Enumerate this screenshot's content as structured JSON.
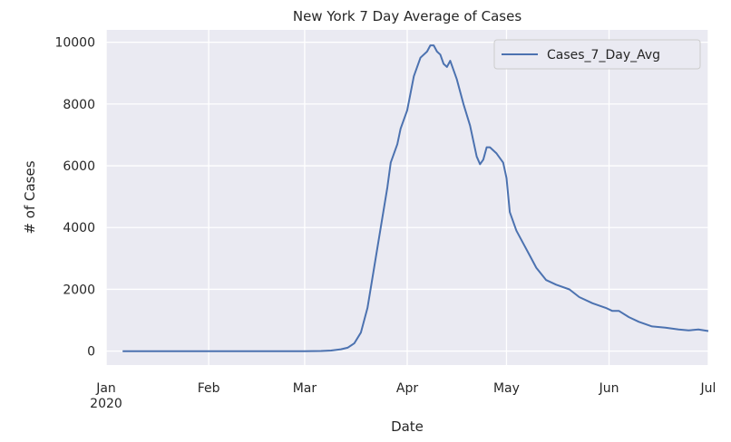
{
  "chart_data": {
    "type": "line",
    "title": "New York 7 Day Average of Cases",
    "xlabel": "Date",
    "ylabel": "# of Cases",
    "x_tick_labels": [
      "Jan\n2020",
      "Feb",
      "Mar",
      "Apr",
      "May",
      "Jun",
      "Jul"
    ],
    "x_tick_dates": [
      "2020-01-01",
      "2020-02-01",
      "2020-03-01",
      "2020-04-01",
      "2020-05-01",
      "2020-06-01",
      "2020-07-01"
    ],
    "xlim": [
      "2020-01-01",
      "2020-07-01"
    ],
    "y_ticks": [
      0,
      2000,
      4000,
      6000,
      8000,
      10000
    ],
    "y_tick_labels": [
      "0",
      "2000",
      "4000",
      "6000",
      "8000",
      "10000"
    ],
    "ylim": [
      -450,
      10400
    ],
    "grid": true,
    "legend": {
      "position": "top-right",
      "entries": [
        "Cases_7_Day_Avg"
      ]
    },
    "series": [
      {
        "name": "Cases_7_Day_Avg",
        "color": "#4c72b0",
        "points": [
          [
            "2020-01-06",
            0
          ],
          [
            "2020-01-15",
            0
          ],
          [
            "2020-02-01",
            0
          ],
          [
            "2020-02-15",
            0
          ],
          [
            "2020-03-01",
            0
          ],
          [
            "2020-03-06",
            5
          ],
          [
            "2020-03-09",
            20
          ],
          [
            "2020-03-12",
            60
          ],
          [
            "2020-03-14",
            110
          ],
          [
            "2020-03-16",
            250
          ],
          [
            "2020-03-18",
            600
          ],
          [
            "2020-03-20",
            1400
          ],
          [
            "2020-03-22",
            2700
          ],
          [
            "2020-03-24",
            4000
          ],
          [
            "2020-03-26",
            5300
          ],
          [
            "2020-03-27",
            6100
          ],
          [
            "2020-03-29",
            6700
          ],
          [
            "2020-03-30",
            7200
          ],
          [
            "2020-04-01",
            7800
          ],
          [
            "2020-04-03",
            8900
          ],
          [
            "2020-04-05",
            9500
          ],
          [
            "2020-04-07",
            9700
          ],
          [
            "2020-04-08",
            9900
          ],
          [
            "2020-04-09",
            9900
          ],
          [
            "2020-04-10",
            9700
          ],
          [
            "2020-04-11",
            9600
          ],
          [
            "2020-04-12",
            9300
          ],
          [
            "2020-04-13",
            9200
          ],
          [
            "2020-04-14",
            9400
          ],
          [
            "2020-04-16",
            8800
          ],
          [
            "2020-04-18",
            8000
          ],
          [
            "2020-04-20",
            7300
          ],
          [
            "2020-04-22",
            6300
          ],
          [
            "2020-04-23",
            6050
          ],
          [
            "2020-04-24",
            6200
          ],
          [
            "2020-04-25",
            6600
          ],
          [
            "2020-04-26",
            6600
          ],
          [
            "2020-04-28",
            6400
          ],
          [
            "2020-04-30",
            6100
          ],
          [
            "2020-05-01",
            5600
          ],
          [
            "2020-05-02",
            4500
          ],
          [
            "2020-05-04",
            3900
          ],
          [
            "2020-05-06",
            3500
          ],
          [
            "2020-05-08",
            3100
          ],
          [
            "2020-05-10",
            2700
          ],
          [
            "2020-05-13",
            2300
          ],
          [
            "2020-05-16",
            2150
          ],
          [
            "2020-05-20",
            2000
          ],
          [
            "2020-05-23",
            1750
          ],
          [
            "2020-05-27",
            1550
          ],
          [
            "2020-05-31",
            1400
          ],
          [
            "2020-06-02",
            1300
          ],
          [
            "2020-06-04",
            1300
          ],
          [
            "2020-06-07",
            1100
          ],
          [
            "2020-06-10",
            950
          ],
          [
            "2020-06-14",
            800
          ],
          [
            "2020-06-18",
            760
          ],
          [
            "2020-06-22",
            700
          ],
          [
            "2020-06-25",
            670
          ],
          [
            "2020-06-28",
            700
          ],
          [
            "2020-07-01",
            650
          ]
        ]
      }
    ]
  }
}
